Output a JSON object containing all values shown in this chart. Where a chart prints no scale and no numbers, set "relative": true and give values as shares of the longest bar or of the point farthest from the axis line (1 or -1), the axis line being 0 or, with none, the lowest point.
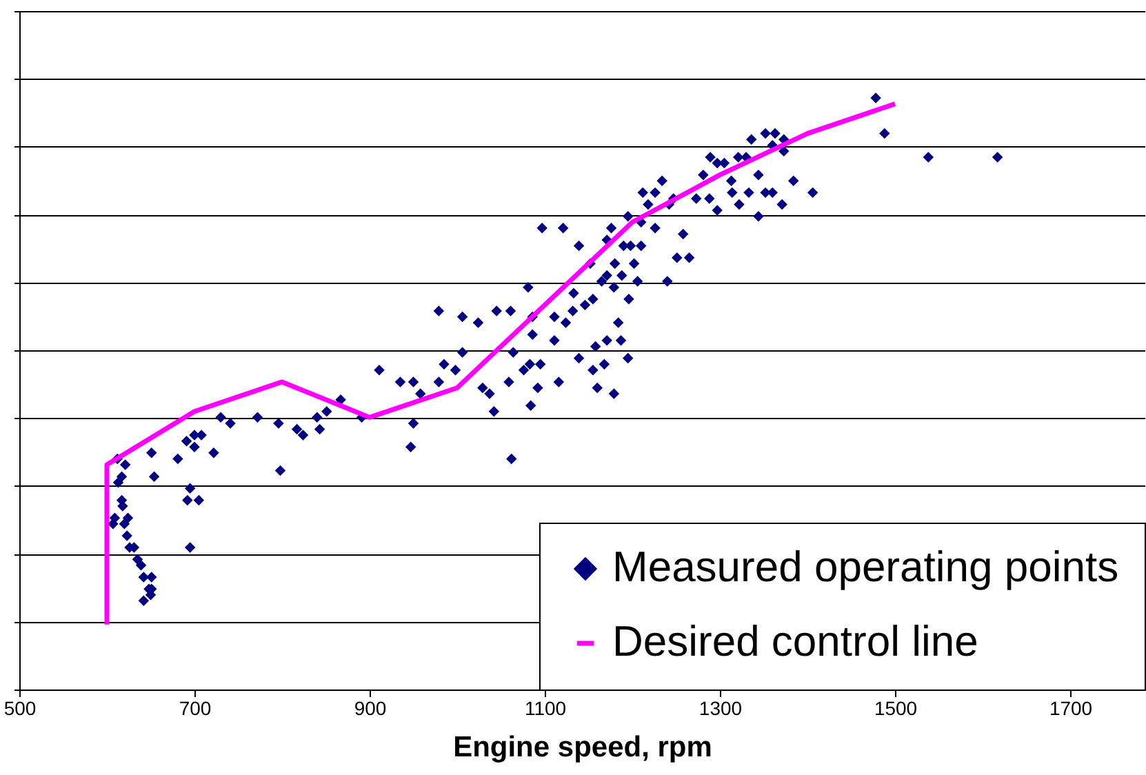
{
  "chart_data": {
    "type": "scatter",
    "xlabel": "Engine speed,   rpm",
    "relative": true,
    "grid": "y",
    "legend": "bottom right",
    "xlim": [
      500,
      1785
    ],
    "xticks": [
      500,
      700,
      900,
      1100,
      1300,
      1500,
      1700
    ],
    "series": [
      {
        "name": "Measured operating points",
        "marker": "diamond",
        "color": "#000080",
        "x": [
          612,
          621,
          613,
          617,
          618,
          609,
          620,
          624,
          607,
          623,
          626,
          631,
          635,
          639,
          642,
          648,
          651,
          642,
          650,
          651,
          617,
          651,
          654,
          691,
          700,
          700,
          695,
          692,
          705,
          695,
          681,
          708,
          722,
          730,
          741,
          772,
          796,
          798,
          817,
          824,
          840,
          851,
          843,
          867,
          891,
          911,
          935,
          950,
          958,
          947,
          950,
          979,
          985,
          998,
          1006,
          979,
          1006,
          1024,
          1029,
          1042,
          1037,
          1059,
          1062,
          1084,
          1083,
          1092,
          1076,
          1064,
          1086,
          1095,
          1111,
          1116,
          1111,
          1124,
          1132,
          1139,
          1155,
          1160,
          1158,
          1168,
          1171,
          1184,
          1187,
          1195,
          1179,
          1155,
          1146,
          1165,
          1171,
          1179,
          1188,
          1196,
          1202,
          1206,
          1210,
          1190,
          1171,
          1176,
          1195,
          1210,
          1218,
          1226,
          1242,
          1212,
          1226,
          1234,
          1247,
          1251,
          1258,
          1265,
          1240,
          1198,
          1133,
          1097,
          1121,
          1081,
          1086,
          1139,
          1152,
          1180,
          1305,
          1313,
          1321,
          1330,
          1336,
          1352,
          1360,
          1363,
          1373,
          1373,
          1281,
          1273,
          1288,
          1297,
          1314,
          1333,
          1344,
          1352,
          1360,
          1371,
          1384,
          1406,
          1344,
          1322,
          1289,
          1297,
          1478,
          1488,
          1538,
          1617,
          1045,
          1061
        ],
        "values": [
          0.39,
          0.38,
          0.35,
          0.32,
          0.31,
          0.29,
          0.28,
          0.29,
          0.28,
          0.26,
          0.24,
          0.24,
          0.22,
          0.21,
          0.19,
          0.17,
          0.17,
          0.15,
          0.16,
          0.19,
          0.36,
          0.4,
          0.36,
          0.42,
          0.43,
          0.41,
          0.34,
          0.32,
          0.32,
          0.24,
          0.39,
          0.43,
          0.4,
          0.46,
          0.45,
          0.46,
          0.45,
          0.37,
          0.44,
          0.43,
          0.46,
          0.47,
          0.44,
          0.49,
          0.46,
          0.54,
          0.52,
          0.52,
          0.5,
          0.41,
          0.45,
          0.52,
          0.55,
          0.54,
          0.57,
          0.64,
          0.63,
          0.62,
          0.51,
          0.47,
          0.5,
          0.52,
          0.39,
          0.48,
          0.55,
          0.51,
          0.54,
          0.57,
          0.6,
          0.55,
          0.59,
          0.52,
          0.63,
          0.62,
          0.64,
          0.56,
          0.54,
          0.51,
          0.58,
          0.55,
          0.59,
          0.62,
          0.59,
          0.56,
          0.5,
          0.66,
          0.65,
          0.69,
          0.7,
          0.68,
          0.7,
          0.66,
          0.72,
          0.69,
          0.75,
          0.75,
          0.76,
          0.78,
          0.8,
          0.79,
          0.82,
          0.78,
          0.82,
          0.84,
          0.84,
          0.86,
          0.83,
          0.73,
          0.77,
          0.73,
          0.69,
          0.75,
          0.67,
          0.78,
          0.78,
          0.68,
          0.63,
          0.75,
          0.72,
          0.72,
          0.89,
          0.86,
          0.9,
          0.9,
          0.93,
          0.94,
          0.92,
          0.94,
          0.93,
          0.91,
          0.87,
          0.83,
          0.83,
          0.81,
          0.84,
          0.84,
          0.87,
          0.84,
          0.84,
          0.82,
          0.86,
          0.84,
          0.8,
          0.82,
          0.9,
          0.89,
          1.0,
          0.94,
          0.9,
          0.9,
          0.64,
          0.64
        ]
      },
      {
        "name": "Desired control line",
        "type": "line",
        "marker": "none",
        "line_style": "solid",
        "color": "#ff00ff",
        "x": [
          600,
          600,
          700,
          800,
          900,
          1000,
          1200,
          1300,
          1400,
          1500
        ],
        "values": [
          0.11,
          0.38,
          0.47,
          0.52,
          0.46,
          0.51,
          0.79,
          0.87,
          0.94,
          0.99
        ]
      }
    ]
  }
}
